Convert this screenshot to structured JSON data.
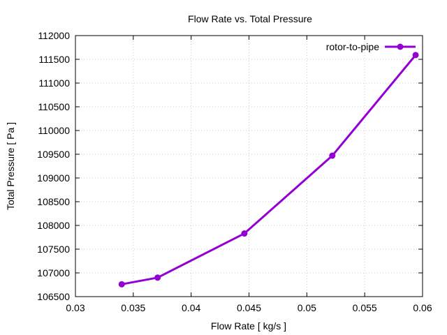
{
  "chart_data": {
    "type": "line",
    "title": "Flow Rate vs. Total Pressure",
    "xlabel": "Flow Rate [ kg/s ]",
    "ylabel": "Total Pressure [ Pa ]",
    "xlim": [
      0.03,
      0.06
    ],
    "ylim": [
      106500,
      112000
    ],
    "xticks": [
      0.03,
      0.035,
      0.04,
      0.045,
      0.05,
      0.055,
      0.06
    ],
    "xtick_labels": [
      "0.03",
      "0.035",
      "0.04",
      "0.045",
      "0.05",
      "0.055",
      "0.06"
    ],
    "yticks": [
      106500,
      107000,
      107500,
      108000,
      108500,
      109000,
      109500,
      110000,
      110500,
      111000,
      111500,
      112000
    ],
    "ytick_labels": [
      "106500",
      "107000",
      "107500",
      "108000",
      "108500",
      "109000",
      "109500",
      "110000",
      "110500",
      "111000",
      "111500",
      "112000"
    ],
    "grid": true,
    "legend_position": "top-right",
    "series": [
      {
        "name": "rotor-to-pipe",
        "color": "#9400d3",
        "marker": "circle",
        "x": [
          0.034,
          0.0371,
          0.0446,
          0.0522,
          0.0594
        ],
        "y": [
          106760,
          106900,
          107830,
          109470,
          111590
        ]
      }
    ]
  }
}
